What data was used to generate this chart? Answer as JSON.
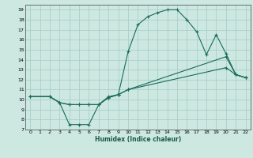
{
  "xlabel": "Humidex (Indice chaleur)",
  "bg_color": "#cce8e0",
  "grid_color": "#aacfc8",
  "line_color": "#1a6b5a",
  "xlim": [
    -0.5,
    22.5
  ],
  "ylim": [
    7,
    19.5
  ],
  "xticks": [
    0,
    1,
    2,
    3,
    4,
    5,
    6,
    7,
    8,
    9,
    10,
    11,
    12,
    13,
    14,
    15,
    16,
    17,
    18,
    19,
    20,
    21,
    22
  ],
  "yticks": [
    7,
    8,
    9,
    10,
    11,
    12,
    13,
    14,
    15,
    16,
    17,
    18,
    19
  ],
  "line1_x": [
    0,
    2,
    3,
    4,
    5,
    6,
    7,
    8,
    9,
    10,
    11,
    12,
    13,
    14,
    15,
    16,
    17,
    18,
    19,
    20,
    21,
    22
  ],
  "line1_y": [
    10.3,
    10.3,
    9.7,
    7.5,
    7.5,
    7.5,
    9.5,
    10.3,
    10.5,
    14.8,
    17.5,
    18.3,
    18.7,
    19.0,
    19.0,
    18.0,
    16.8,
    14.5,
    16.5,
    14.6,
    12.5,
    12.2
  ],
  "line2_x": [
    0,
    2,
    3,
    4,
    5,
    6,
    7,
    8,
    9,
    10,
    20,
    21,
    22
  ],
  "line2_y": [
    10.3,
    10.3,
    9.7,
    9.5,
    9.5,
    9.5,
    9.5,
    10.2,
    10.5,
    11.0,
    13.2,
    12.5,
    12.2
  ],
  "line3_x": [
    0,
    2,
    3,
    4,
    5,
    6,
    7,
    8,
    9,
    10,
    20,
    21,
    22
  ],
  "line3_y": [
    10.3,
    10.3,
    9.7,
    9.5,
    9.5,
    9.5,
    9.5,
    10.2,
    10.5,
    11.0,
    14.3,
    12.5,
    12.2
  ],
  "marker": "+"
}
